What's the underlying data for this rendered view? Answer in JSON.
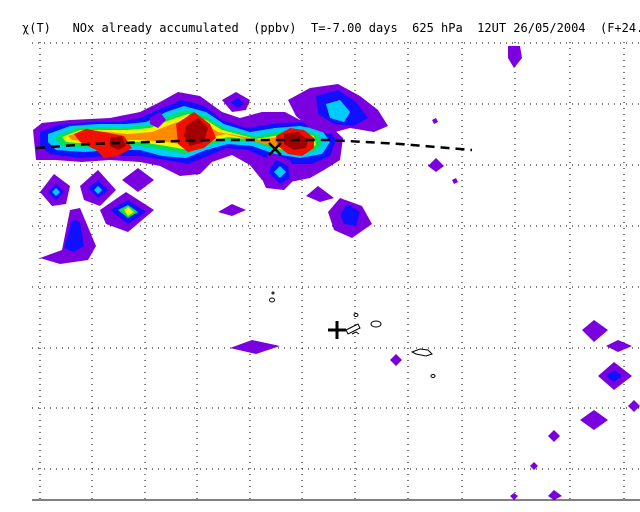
{
  "figure": {
    "title": "χ(T)   NOx already accumulated  (ppbv)  T=-7.00 days  625 hPa  12UT 26/05/2004  (F+24.d",
    "field": "NOx already accumulated",
    "units": "ppbv",
    "time_offset": "T=-7.00 days",
    "pressure_level": "625 hPa",
    "valid_time": "12UT 26/05/2004",
    "forecast_suffix": "(F+24.d",
    "grid": "dotted",
    "colors": {
      "violet": "#7a00e0",
      "blue": "#1010ff",
      "cyan": "#00ccff",
      "green": "#00e05a",
      "yellow": "#f5f500",
      "orange": "#ff8a00",
      "red": "#f01000",
      "darkred": "#a00000"
    },
    "markers": {
      "trajectory_point": "cross-x-marker",
      "release_location": "plus-marker",
      "trajectory_path": "dashed-trajectory-line"
    }
  }
}
